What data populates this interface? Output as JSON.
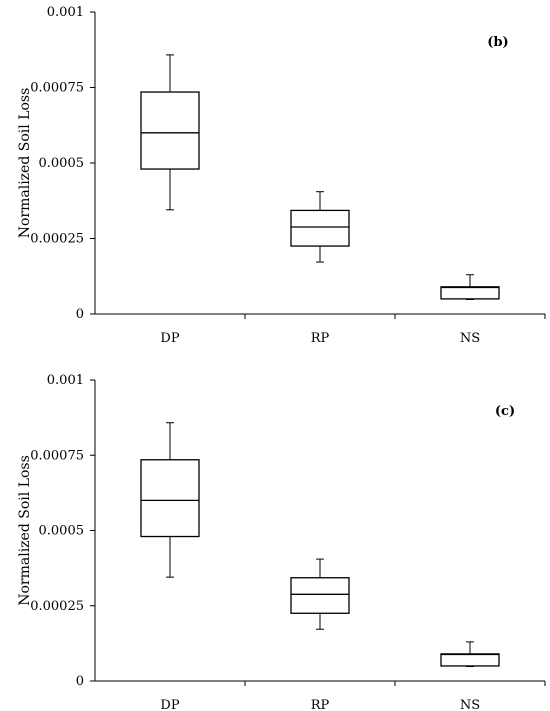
{
  "chart_data": [
    {
      "type": "box",
      "panel_label": "(b)",
      "ylabel": "Normalized Soil Loss",
      "xlabel": "",
      "ylim": [
        0,
        0.001
      ],
      "yticks": [
        0,
        0.00025,
        0.0005,
        0.00075,
        0.001
      ],
      "ytick_labels": [
        "0",
        "0.00025",
        "0.0005",
        "0.00075",
        "0.001"
      ],
      "categories": [
        "DP",
        "RP",
        "NS"
      ],
      "boxes": [
        {
          "min": 0.000345,
          "q1": 0.00048,
          "median": 0.0006,
          "q3": 0.000735,
          "max": 0.000858
        },
        {
          "min": 0.000172,
          "q1": 0.000225,
          "median": 0.000288,
          "q3": 0.000343,
          "max": 0.000405
        },
        {
          "min": 4.8e-05,
          "q1": 5e-05,
          "median": 8.8e-05,
          "q3": 9e-05,
          "max": 0.00013
        }
      ],
      "grid": false,
      "legend": "none"
    },
    {
      "type": "box",
      "panel_label": "(c)",
      "ylabel": "Normalized Soil Loss",
      "xlabel": "",
      "ylim": [
        0,
        0.001
      ],
      "yticks": [
        0,
        0.00025,
        0.0005,
        0.00075,
        0.001
      ],
      "ytick_labels": [
        "0",
        "0.00025",
        "0.0005",
        "0.00075",
        "0.001"
      ],
      "categories": [
        "DP",
        "RP",
        "NS"
      ],
      "boxes": [
        {
          "min": 0.000345,
          "q1": 0.00048,
          "median": 0.0006,
          "q3": 0.000735,
          "max": 0.000858
        },
        {
          "min": 0.000172,
          "q1": 0.000225,
          "median": 0.000288,
          "q3": 0.000343,
          "max": 0.000405
        },
        {
          "min": 4.8e-05,
          "q1": 5e-05,
          "median": 8.8e-05,
          "q3": 9e-05,
          "max": 0.00013
        }
      ],
      "grid": false,
      "legend": "none"
    }
  ]
}
